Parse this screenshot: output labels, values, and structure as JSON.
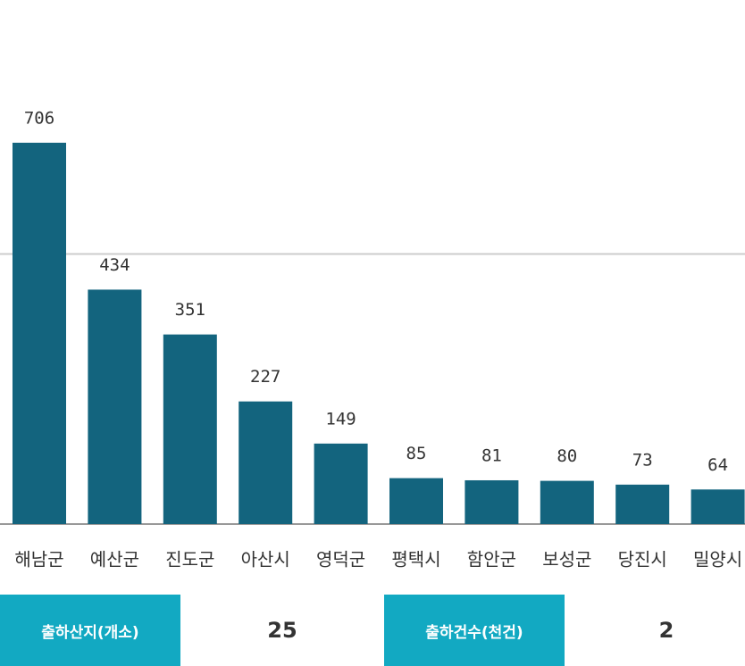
{
  "chart_data": {
    "type": "bar",
    "categories": [
      "해남군",
      "예산군",
      "진도군",
      "아산시",
      "영덕군",
      "평택시",
      "함안군",
      "보성군",
      "당진시",
      "밀양시"
    ],
    "values": [
      706,
      434,
      351,
      227,
      149,
      85,
      81,
      80,
      73,
      64
    ],
    "color": "#13647e",
    "ylim": [
      0,
      1000
    ],
    "yticks": [
      0,
      500
    ],
    "grid": true,
    "tick_labels": false
  },
  "stats": [
    {
      "label": "출하산지(개소)",
      "value": 25
    },
    {
      "label": "출하건수(천건)",
      "value": 2
    }
  ]
}
